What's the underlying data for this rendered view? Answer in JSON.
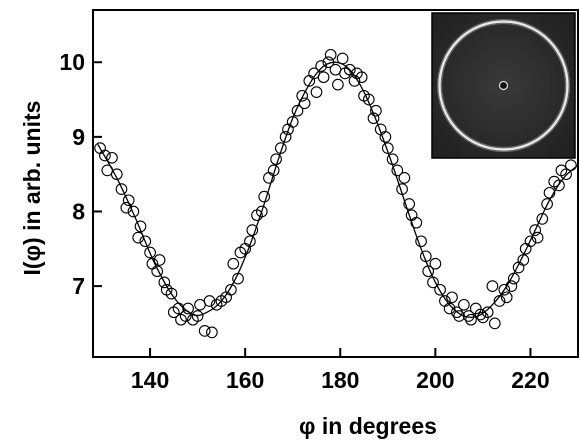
{
  "chart_data": {
    "type": "scatter",
    "title": "",
    "xlabel": "φ in degrees",
    "ylabel": "I(φ) in arb. units",
    "xlim": [
      128,
      230
    ],
    "ylim": [
      6.05,
      10.7
    ],
    "x_ticks": [
      140,
      160,
      180,
      200,
      220
    ],
    "y_ticks": [
      7,
      8,
      9,
      10
    ],
    "x_tick_labels": [
      "140",
      "160",
      "180",
      "200",
      "220"
    ],
    "y_tick_labels": [
      "7",
      "8",
      "9",
      "10"
    ],
    "grid": false,
    "legend": "none",
    "inset": "ring-shaped intensity image (dark background, bright circular ring)",
    "series": [
      {
        "marker": "open-circle",
        "points": [
          [
            129.5,
            8.85
          ],
          [
            130.5,
            8.75
          ],
          [
            131.0,
            8.55
          ],
          [
            132.0,
            8.72
          ],
          [
            133.0,
            8.5
          ],
          [
            134.0,
            8.3
          ],
          [
            135.0,
            8.05
          ],
          [
            135.5,
            8.15
          ],
          [
            136.5,
            8.0
          ],
          [
            137.5,
            7.65
          ],
          [
            138.0,
            7.8
          ],
          [
            139.0,
            7.6
          ],
          [
            140.0,
            7.45
          ],
          [
            140.5,
            7.3
          ],
          [
            141.5,
            7.2
          ],
          [
            142.0,
            7.35
          ],
          [
            143.0,
            7.05
          ],
          [
            143.5,
            6.95
          ],
          [
            144.5,
            6.9
          ],
          [
            145.0,
            6.65
          ],
          [
            146.0,
            6.7
          ],
          [
            146.5,
            6.55
          ],
          [
            147.5,
            6.6
          ],
          [
            148.0,
            6.7
          ],
          [
            149.0,
            6.55
          ],
          [
            150.0,
            6.6
          ],
          [
            150.5,
            6.75
          ],
          [
            151.5,
            6.4
          ],
          [
            152.5,
            6.8
          ],
          [
            153.0,
            6.38
          ],
          [
            154.0,
            6.75
          ],
          [
            155.0,
            6.8
          ],
          [
            156.0,
            6.85
          ],
          [
            157.0,
            6.95
          ],
          [
            157.5,
            7.3
          ],
          [
            158.5,
            7.1
          ],
          [
            159.0,
            7.45
          ],
          [
            160.0,
            7.5
          ],
          [
            161.0,
            7.6
          ],
          [
            161.5,
            7.75
          ],
          [
            162.5,
            7.95
          ],
          [
            163.5,
            8.0
          ],
          [
            164.0,
            8.2
          ],
          [
            165.0,
            8.45
          ],
          [
            166.0,
            8.55
          ],
          [
            166.5,
            8.7
          ],
          [
            167.5,
            8.85
          ],
          [
            168.5,
            9.0
          ],
          [
            169.0,
            9.1
          ],
          [
            170.0,
            9.2
          ],
          [
            171.0,
            9.35
          ],
          [
            172.0,
            9.55
          ],
          [
            172.5,
            9.45
          ],
          [
            173.5,
            9.75
          ],
          [
            174.5,
            9.85
          ],
          [
            175.0,
            9.6
          ],
          [
            176.0,
            9.95
          ],
          [
            176.5,
            9.8
          ],
          [
            177.5,
            10.0
          ],
          [
            178.0,
            10.1
          ],
          [
            179.0,
            9.9
          ],
          [
            179.5,
            9.7
          ],
          [
            180.5,
            10.05
          ],
          [
            181.0,
            9.85
          ],
          [
            182.0,
            9.9
          ],
          [
            183.0,
            9.75
          ],
          [
            183.5,
            9.85
          ],
          [
            184.5,
            9.8
          ],
          [
            185.0,
            9.55
          ],
          [
            186.0,
            9.5
          ],
          [
            187.0,
            9.25
          ],
          [
            187.5,
            9.35
          ],
          [
            188.5,
            9.1
          ],
          [
            189.5,
            9.0
          ],
          [
            190.0,
            8.85
          ],
          [
            191.0,
            8.7
          ],
          [
            192.0,
            8.55
          ],
          [
            193.0,
            8.3
          ],
          [
            193.5,
            8.45
          ],
          [
            194.5,
            8.1
          ],
          [
            195.0,
            7.95
          ],
          [
            196.0,
            7.85
          ],
          [
            197.0,
            7.6
          ],
          [
            198.0,
            7.4
          ],
          [
            198.5,
            7.2
          ],
          [
            199.5,
            7.05
          ],
          [
            200.0,
            7.3
          ],
          [
            201.0,
            6.95
          ],
          [
            202.0,
            6.8
          ],
          [
            203.0,
            6.7
          ],
          [
            203.5,
            6.85
          ],
          [
            204.5,
            6.65
          ],
          [
            205.0,
            6.6
          ],
          [
            206.0,
            6.75
          ],
          [
            207.0,
            6.6
          ],
          [
            207.5,
            6.55
          ],
          [
            208.5,
            6.7
          ],
          [
            209.5,
            6.62
          ],
          [
            210.0,
            6.58
          ],
          [
            211.0,
            6.65
          ],
          [
            212.0,
            7.0
          ],
          [
            212.5,
            6.5
          ],
          [
            213.5,
            6.8
          ],
          [
            214.5,
            6.95
          ],
          [
            215.0,
            6.85
          ],
          [
            216.0,
            7.0
          ],
          [
            216.5,
            7.1
          ],
          [
            217.5,
            7.25
          ],
          [
            218.5,
            7.35
          ],
          [
            219.0,
            7.5
          ],
          [
            220.0,
            7.6
          ],
          [
            221.0,
            7.75
          ],
          [
            221.5,
            7.65
          ],
          [
            222.5,
            7.9
          ],
          [
            223.5,
            8.1
          ],
          [
            224.0,
            8.25
          ],
          [
            225.0,
            8.4
          ],
          [
            226.0,
            8.35
          ],
          [
            226.5,
            8.55
          ],
          [
            227.5,
            8.5
          ],
          [
            228.5,
            8.62
          ]
        ]
      },
      {
        "style": "solid-line",
        "points": [
          [
            129,
            8.9
          ],
          [
            133,
            8.45
          ],
          [
            137,
            7.9
          ],
          [
            141,
            7.3
          ],
          [
            145,
            6.85
          ],
          [
            149,
            6.62
          ],
          [
            152,
            6.65
          ],
          [
            155,
            6.8
          ],
          [
            158,
            7.1
          ],
          [
            161,
            7.55
          ],
          [
            164,
            8.1
          ],
          [
            167,
            8.7
          ],
          [
            170,
            9.25
          ],
          [
            173,
            9.65
          ],
          [
            176,
            9.92
          ],
          [
            179,
            10.0
          ],
          [
            182,
            9.9
          ],
          [
            185,
            9.6
          ],
          [
            188,
            9.15
          ],
          [
            191,
            8.62
          ],
          [
            194,
            8.05
          ],
          [
            197,
            7.5
          ],
          [
            200,
            7.05
          ],
          [
            203,
            6.75
          ],
          [
            206,
            6.6
          ],
          [
            209,
            6.6
          ],
          [
            212,
            6.75
          ],
          [
            215,
            7.0
          ],
          [
            218,
            7.35
          ],
          [
            221,
            7.75
          ],
          [
            224,
            8.15
          ],
          [
            227,
            8.45
          ],
          [
            230,
            8.62
          ]
        ]
      }
    ]
  }
}
